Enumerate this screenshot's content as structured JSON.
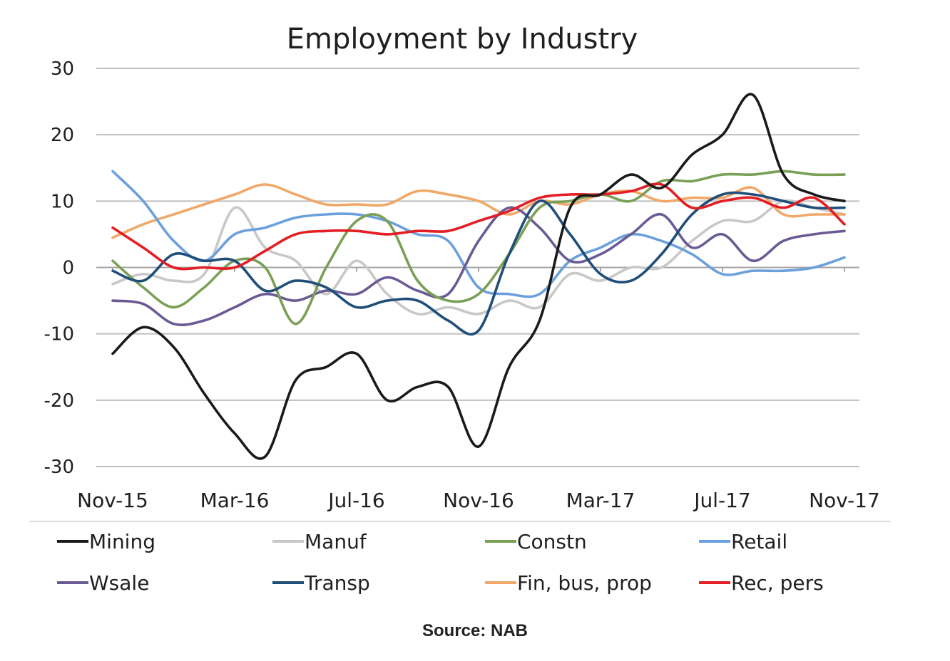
{
  "chart_data": {
    "type": "line",
    "title": "Employment by Industry",
    "xlabel": "",
    "ylabel": "",
    "ylim": [
      -30,
      30
    ],
    "yticks": [
      30,
      20,
      10,
      0,
      -10,
      -20,
      -30
    ],
    "ytick_labels": [
      "30",
      "20",
      "10",
      "0",
      "-10",
      "-20",
      "-30"
    ],
    "x": [
      "Nov-15",
      "Dec-15",
      "Jan-16",
      "Feb-16",
      "Mar-16",
      "Apr-16",
      "May-16",
      "Jun-16",
      "Jul-16",
      "Aug-16",
      "Sep-16",
      "Oct-16",
      "Nov-16",
      "Dec-16",
      "Jan-17",
      "Feb-17",
      "Mar-17",
      "Apr-17",
      "May-17",
      "Jun-17",
      "Jul-17",
      "Aug-17",
      "Sep-17",
      "Oct-17",
      "Nov-17"
    ],
    "xtick_labels": [
      "Nov-15",
      "Mar-16",
      "Jul-16",
      "Nov-16",
      "Mar-17",
      "Jul-17",
      "Nov-17"
    ],
    "grid": true,
    "legend_position": "bottom",
    "series": [
      {
        "name": "Mining",
        "color": "#1a1a1a",
        "values": [
          -13,
          -9,
          -12,
          -19,
          -25,
          -28.5,
          -17,
          -15,
          -13,
          -20,
          -18,
          -18,
          -27,
          -15,
          -8,
          9,
          11,
          14,
          12,
          17,
          20,
          26,
          14,
          11,
          10
        ]
      },
      {
        "name": "Manuf",
        "color": "#c8c8c8",
        "values": [
          -2.5,
          -1,
          -2,
          -1,
          9,
          3,
          1,
          -4,
          1,
          -4,
          -7,
          -6,
          -7,
          -5,
          -6,
          -1,
          -2,
          0,
          0,
          4,
          7,
          7,
          10,
          9,
          8
        ]
      },
      {
        "name": "Constn",
        "color": "#7aa056",
        "values": [
          1,
          -3,
          -6,
          -3,
          1,
          0,
          -8.5,
          0,
          7,
          7,
          -2,
          -5,
          -4,
          2,
          9,
          10,
          11,
          10,
          13,
          13,
          14,
          14,
          14.5,
          14,
          14
        ]
      },
      {
        "name": "Retail",
        "color": "#6ca0dc",
        "values": [
          14.5,
          10,
          4,
          1,
          5,
          6,
          7.5,
          8,
          8,
          7,
          5,
          4,
          -3,
          -4,
          -4,
          1,
          3,
          5,
          4,
          2,
          -1,
          -0.5,
          -0.5,
          0,
          1.5
        ]
      },
      {
        "name": "Wsale",
        "color": "#6b5b95",
        "values": [
          -5,
          -5.5,
          -8.5,
          -8,
          -6,
          -4,
          -5,
          -3.5,
          -4,
          -1.5,
          -3.5,
          -4,
          4,
          9,
          6,
          1,
          2,
          5,
          8,
          3,
          5,
          1,
          4,
          5,
          5.5
        ]
      },
      {
        "name": "Transp",
        "color": "#1f4e79",
        "values": [
          -0.5,
          -2,
          2,
          1,
          1,
          -3.5,
          -2,
          -3,
          -6,
          -5,
          -5,
          -8,
          -9.5,
          2,
          10,
          5,
          -1,
          -2,
          2,
          8,
          11,
          11,
          10,
          9,
          9
        ]
      },
      {
        "name": "Fin, bus, prop",
        "color": "#f0a868",
        "values": [
          4.5,
          6.5,
          8,
          9.5,
          11,
          12.5,
          11,
          9.5,
          9.5,
          9.5,
          11.5,
          11,
          10,
          8,
          10,
          9.5,
          11,
          11.5,
          10,
          10.5,
          10.5,
          12,
          8,
          8,
          8
        ]
      },
      {
        "name": "Rec, pers",
        "color": "#e31e24",
        "values": [
          6,
          3,
          0,
          0,
          0,
          2.5,
          5,
          5.5,
          5.5,
          5,
          5.5,
          5.5,
          7,
          8.5,
          10.5,
          11,
          11,
          11.5,
          12.5,
          9,
          10,
          10.5,
          9,
          10.5,
          6.5
        ]
      }
    ]
  },
  "source": "Source: NAB"
}
